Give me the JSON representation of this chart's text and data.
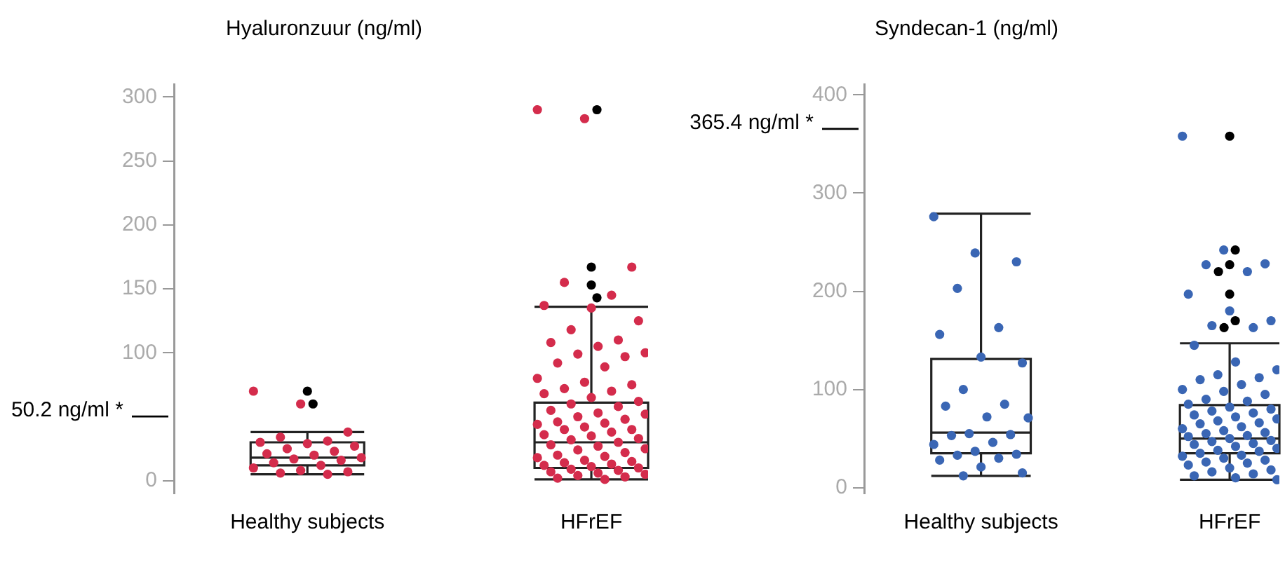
{
  "chart_data": [
    {
      "type": "box",
      "title": "Hyaluronzuur (ng/ml)",
      "categories": [
        "Healthy subjects",
        "HFrEF"
      ],
      "ylim": [
        -10,
        310
      ],
      "yticks": [
        0,
        100,
        150,
        200,
        250,
        300
      ],
      "grid": false,
      "boxes": [
        {
          "low": 5,
          "q1": 12,
          "median": 18,
          "q3": 30,
          "high": 38,
          "outliers": [
            70,
            60
          ]
        },
        {
          "low": 1,
          "q1": 10,
          "median": 30,
          "q3": 61,
          "high": 136,
          "outliers": [
            290,
            167,
            153,
            143
          ]
        }
      ],
      "ref_lines": [
        {
          "axis": "y",
          "value": 50.2,
          "label": "50.2 ng/ml *"
        }
      ],
      "series": [
        {
          "type": "scatter",
          "color": "#d42c4c",
          "x": [
            "Healthy subjects",
            "Healthy subjects",
            "Healthy subjects",
            "Healthy subjects",
            "Healthy subjects",
            "Healthy subjects",
            "Healthy subjects",
            "Healthy subjects",
            "Healthy subjects",
            "Healthy subjects",
            "Healthy subjects",
            "Healthy subjects",
            "Healthy subjects",
            "Healthy subjects",
            "Healthy subjects",
            "Healthy subjects",
            "Healthy subjects",
            "Healthy subjects",
            "Healthy subjects",
            "Healthy subjects",
            "Healthy subjects",
            "Healthy subjects"
          ],
          "values": [
            70,
            60,
            38,
            34,
            31,
            30,
            29,
            27,
            25,
            23,
            21,
            20,
            18,
            17,
            16,
            14,
            12,
            10,
            8,
            7,
            6,
            5
          ]
        },
        {
          "type": "scatter",
          "color": "#d42c4c",
          "x": [
            "HFrEF",
            "HFrEF",
            "HFrEF",
            "HFrEF",
            "HFrEF",
            "HFrEF",
            "HFrEF",
            "HFrEF",
            "HFrEF",
            "HFrEF",
            "HFrEF",
            "HFrEF",
            "HFrEF",
            "HFrEF",
            "HFrEF",
            "HFrEF",
            "HFrEF",
            "HFrEF",
            "HFrEF",
            "HFrEF",
            "HFrEF",
            "HFrEF",
            "HFrEF",
            "HFrEF",
            "HFrEF",
            "HFrEF",
            "HFrEF",
            "HFrEF",
            "HFrEF",
            "HFrEF",
            "HFrEF",
            "HFrEF",
            "HFrEF",
            "HFrEF",
            "HFrEF",
            "HFrEF",
            "HFrEF",
            "HFrEF",
            "HFrEF",
            "HFrEF",
            "HFrEF",
            "HFrEF",
            "HFrEF",
            "HFrEF",
            "HFrEF",
            "HFrEF",
            "HFrEF",
            "HFrEF",
            "HFrEF",
            "HFrEF",
            "HFrEF",
            "HFrEF",
            "HFrEF",
            "HFrEF",
            "HFrEF",
            "HFrEF",
            "HFrEF",
            "HFrEF",
            "HFrEF",
            "HFrEF",
            "HFrEF",
            "HFrEF",
            "HFrEF",
            "HFrEF",
            "HFrEF",
            "HFrEF",
            "HFrEF",
            "HFrEF"
          ],
          "values": [
            290,
            283,
            167,
            155,
            145,
            137,
            135,
            125,
            118,
            110,
            108,
            105,
            100,
            99,
            97,
            92,
            89,
            80,
            77,
            75,
            72,
            70,
            68,
            65,
            62,
            60,
            58,
            55,
            53,
            52,
            50,
            48,
            46,
            45,
            44,
            42,
            40,
            40,
            38,
            36,
            35,
            33,
            32,
            30,
            28,
            27,
            25,
            24,
            22,
            20,
            19,
            18,
            16,
            15,
            14,
            13,
            12,
            11,
            10,
            9,
            8,
            7,
            6,
            5,
            4,
            3,
            2,
            1
          ]
        }
      ]
    },
    {
      "type": "box",
      "title": "Syndecan-1 (ng/ml)",
      "categories": [
        "Healthy subjects",
        "HFrEF"
      ],
      "ylim": [
        -6,
        411
      ],
      "yticks": [
        0,
        100,
        200,
        300,
        400
      ],
      "grid": false,
      "boxes": [
        {
          "low": 12,
          "q1": 35,
          "median": 56,
          "q3": 131,
          "high": 279
        },
        {
          "low": 8,
          "q1": 35,
          "median": 50,
          "q3": 84,
          "high": 147,
          "outliers": [
            358,
            242,
            227,
            220,
            197,
            170,
            163
          ]
        }
      ],
      "ref_lines": [
        {
          "axis": "y",
          "value": 365.4,
          "label": "365.4 ng/ml *"
        }
      ],
      "series": [
        {
          "type": "scatter",
          "color": "#3a66b4",
          "x": [
            "Healthy subjects",
            "Healthy subjects",
            "Healthy subjects",
            "Healthy subjects",
            "Healthy subjects",
            "Healthy subjects",
            "Healthy subjects",
            "Healthy subjects",
            "Healthy subjects",
            "Healthy subjects",
            "Healthy subjects",
            "Healthy subjects",
            "Healthy subjects",
            "Healthy subjects",
            "Healthy subjects",
            "Healthy subjects",
            "Healthy subjects",
            "Healthy subjects",
            "Healthy subjects",
            "Healthy subjects",
            "Healthy subjects",
            "Healthy subjects",
            "Healthy subjects",
            "Healthy subjects",
            "Healthy subjects",
            "Healthy subjects"
          ],
          "values": [
            276,
            239,
            230,
            203,
            163,
            156,
            133,
            127,
            100,
            85,
            83,
            72,
            71,
            55,
            54,
            53,
            46,
            44,
            37,
            34,
            33,
            30,
            28,
            21,
            15,
            12
          ]
        },
        {
          "type": "scatter",
          "color": "#3a66b4",
          "x": [
            "HFrEF",
            "HFrEF",
            "HFrEF",
            "HFrEF",
            "HFrEF",
            "HFrEF",
            "HFrEF",
            "HFrEF",
            "HFrEF",
            "HFrEF",
            "HFrEF",
            "HFrEF",
            "HFrEF",
            "HFrEF",
            "HFrEF",
            "HFrEF",
            "HFrEF",
            "HFrEF",
            "HFrEF",
            "HFrEF",
            "HFrEF",
            "HFrEF",
            "HFrEF",
            "HFrEF",
            "HFrEF",
            "HFrEF",
            "HFrEF",
            "HFrEF",
            "HFrEF",
            "HFrEF",
            "HFrEF",
            "HFrEF",
            "HFrEF",
            "HFrEF",
            "HFrEF",
            "HFrEF",
            "HFrEF",
            "HFrEF",
            "HFrEF",
            "HFrEF",
            "HFrEF",
            "HFrEF",
            "HFrEF",
            "HFrEF",
            "HFrEF",
            "HFrEF",
            "HFrEF",
            "HFrEF",
            "HFrEF",
            "HFrEF",
            "HFrEF",
            "HFrEF",
            "HFrEF",
            "HFrEF",
            "HFrEF",
            "HFrEF",
            "HFrEF",
            "HFrEF",
            "HFrEF",
            "HFrEF",
            "HFrEF",
            "HFrEF",
            "HFrEF",
            "HFrEF"
          ],
          "values": [
            358,
            242,
            228,
            227,
            220,
            197,
            180,
            170,
            165,
            163,
            145,
            128,
            120,
            115,
            112,
            110,
            105,
            100,
            98,
            95,
            90,
            88,
            85,
            82,
            80,
            78,
            76,
            74,
            72,
            70,
            68,
            66,
            65,
            62,
            60,
            58,
            56,
            55,
            53,
            52,
            50,
            48,
            47,
            45,
            44,
            42,
            40,
            38,
            37,
            35,
            33,
            32,
            30,
            28,
            26,
            25,
            23,
            20,
            18,
            16,
            14,
            12,
            10,
            8
          ]
        }
      ]
    }
  ]
}
